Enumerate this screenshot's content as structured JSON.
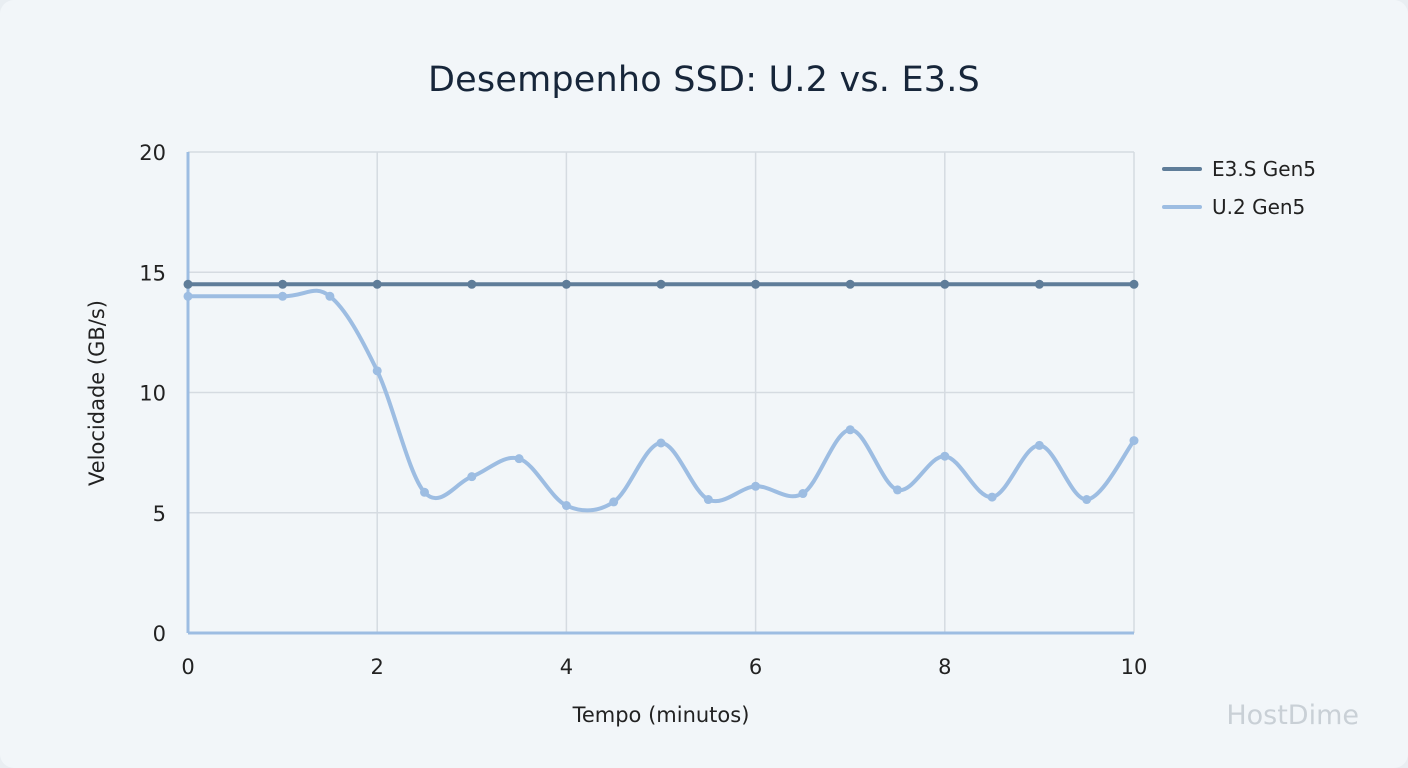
{
  "title": "Desempenho SSD: U.2 vs. E3.S",
  "watermark": "HostDime",
  "colors": {
    "background": "#f2f6f9",
    "grid": "#d5dbe1",
    "e3s": "#5f7d99",
    "u2": "#9dbde2"
  },
  "legend": [
    {
      "label": "E3.S Gen5",
      "color": "#5f7d99"
    },
    {
      "label": "U.2 Gen5",
      "color": "#9dbde2"
    }
  ],
  "chart_data": {
    "type": "line",
    "title": "Desempenho SSD: U.2 vs. E3.S",
    "xlabel": "Tempo (minutos)",
    "ylabel": "Velocidade (GB/s)",
    "xlim": [
      0,
      10
    ],
    "ylim": [
      0,
      20
    ],
    "x_ticks": [
      "0",
      "2",
      "4",
      "6",
      "8",
      "10"
    ],
    "y_ticks": [
      "0",
      "5",
      "10",
      "15",
      "20"
    ],
    "grid": true,
    "legend_position": "right",
    "series": [
      {
        "name": "E3.S Gen5",
        "color": "#5f7d99",
        "x": [
          0,
          1,
          2,
          3,
          4,
          5,
          6,
          7,
          8,
          9,
          10
        ],
        "values": [
          14.5,
          14.5,
          14.5,
          14.5,
          14.5,
          14.5,
          14.5,
          14.5,
          14.5,
          14.5,
          14.5
        ]
      },
      {
        "name": "U.2 Gen5",
        "color": "#9dbde2",
        "x": [
          0,
          1,
          1.5,
          2,
          2.5,
          3,
          3.5,
          4,
          4.5,
          5,
          5.5,
          6,
          6.5,
          7,
          7.5,
          8,
          8.5,
          9,
          9.5,
          10
        ],
        "values": [
          14.0,
          14.0,
          14.0,
          10.9,
          5.85,
          6.5,
          7.25,
          5.3,
          5.45,
          7.9,
          5.55,
          6.1,
          5.8,
          8.45,
          5.95,
          7.35,
          5.65,
          7.8,
          5.55,
          8.0
        ]
      }
    ]
  }
}
